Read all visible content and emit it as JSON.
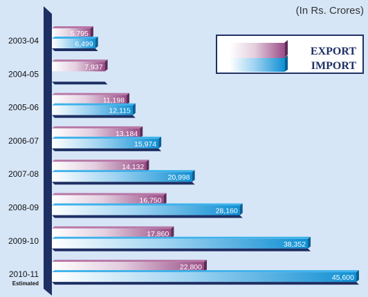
{
  "unit_note": "(In Rs. Crores)",
  "chart_data": {
    "type": "bar",
    "orientation": "horizontal",
    "categories": [
      "2003-04",
      "2004-05",
      "2005-06",
      "2006-07",
      "2007-08",
      "2008-09",
      "2009-10",
      "2010-11"
    ],
    "category_notes": [
      "",
      "",
      "",
      "",
      "",
      "",
      "",
      "Estimated"
    ],
    "series": [
      {
        "name": "EXPORT",
        "color": "#9a4d86",
        "values": [
          5795,
          7937,
          11198,
          13184,
          14132,
          16750,
          17860,
          22800
        ],
        "labels": [
          "5,795",
          "7,937",
          "11,198",
          "13,184",
          "14,132",
          "16,750",
          "17,860",
          "22,800"
        ]
      },
      {
        "name": "IMPORT",
        "color": "#1a9ad8",
        "values": [
          6499,
          null,
          12115,
          15974,
          20998,
          28160,
          38352,
          45600
        ],
        "labels": [
          "6,499",
          "",
          "12,115",
          "15,974",
          "20,998",
          "28,160",
          "38,352",
          "45,600"
        ]
      }
    ],
    "xlim": [
      0,
      45600
    ],
    "grid": false,
    "legend": "top-right"
  }
}
